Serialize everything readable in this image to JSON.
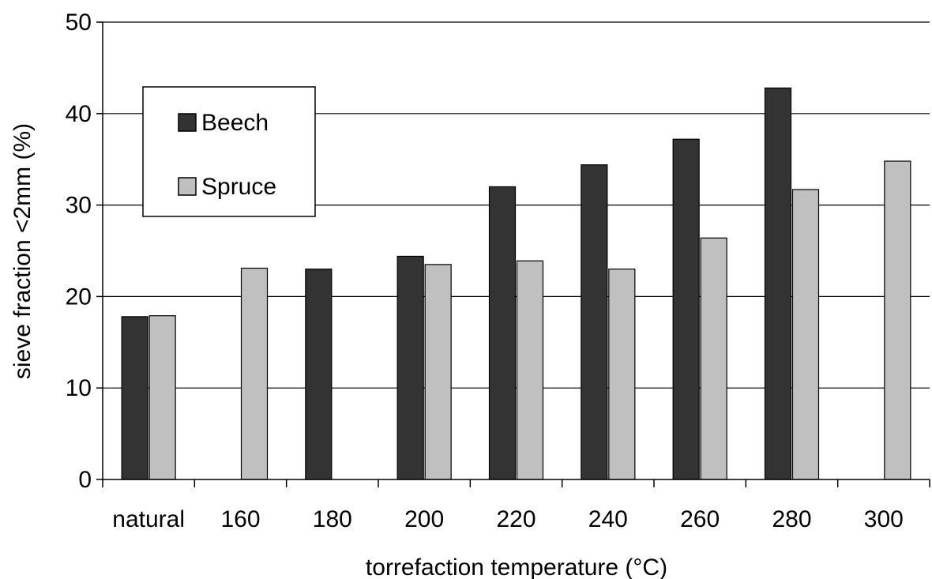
{
  "chart_data": {
    "type": "bar",
    "categories": [
      "natural",
      "160",
      "180",
      "200",
      "220",
      "240",
      "260",
      "280",
      "300"
    ],
    "series": [
      {
        "name": "Beech",
        "values": [
          17.8,
          null,
          23.0,
          24.4,
          32.0,
          34.4,
          37.2,
          42.8,
          null
        ],
        "color": "#333333"
      },
      {
        "name": "Spruce",
        "values": [
          17.9,
          23.1,
          null,
          23.5,
          23.9,
          23.0,
          26.4,
          31.7,
          34.8
        ],
        "color": "#c0c0c0"
      }
    ],
    "xlabel": "torrefaction temperature (°C)",
    "ylabel": "sieve fraction <2mm (%)",
    "ylim": [
      0,
      50
    ],
    "yticks": [
      0,
      10,
      20,
      30,
      40,
      50
    ],
    "grid": "horizontal",
    "legend_position": "top-left"
  }
}
